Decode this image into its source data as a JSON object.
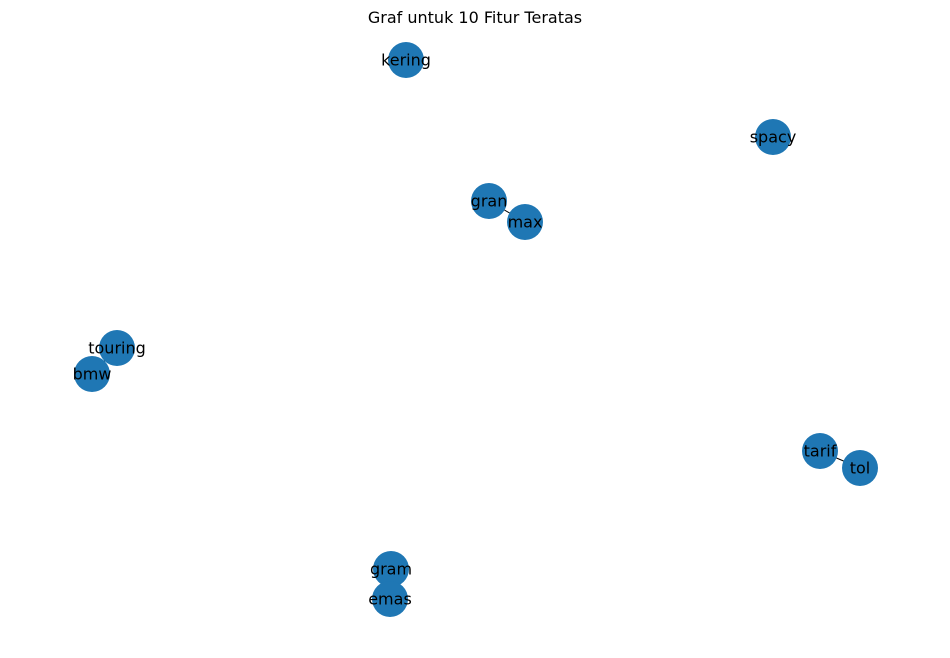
{
  "figure": {
    "title": "Graf untuk 10 Fitur Teratas",
    "node_color": "#1f77b4",
    "edge_color": "#000000",
    "label_color": "#000000"
  },
  "graph": {
    "nodes": [
      {
        "id": "kering",
        "label": "kering"
      },
      {
        "id": "spacy",
        "label": "spacy"
      },
      {
        "id": "gran",
        "label": "gran"
      },
      {
        "id": "max",
        "label": "max"
      },
      {
        "id": "touring",
        "label": "touring"
      },
      {
        "id": "bmw",
        "label": "bmw"
      },
      {
        "id": "tarif",
        "label": "tarif"
      },
      {
        "id": "tol",
        "label": "tol"
      },
      {
        "id": "gram",
        "label": "gram"
      },
      {
        "id": "emas",
        "label": "emas"
      }
    ],
    "edges": [
      {
        "source": "gran",
        "target": "max"
      },
      {
        "source": "touring",
        "target": "bmw"
      },
      {
        "source": "tarif",
        "target": "tol"
      },
      {
        "source": "gram",
        "target": "emas"
      }
    ]
  }
}
